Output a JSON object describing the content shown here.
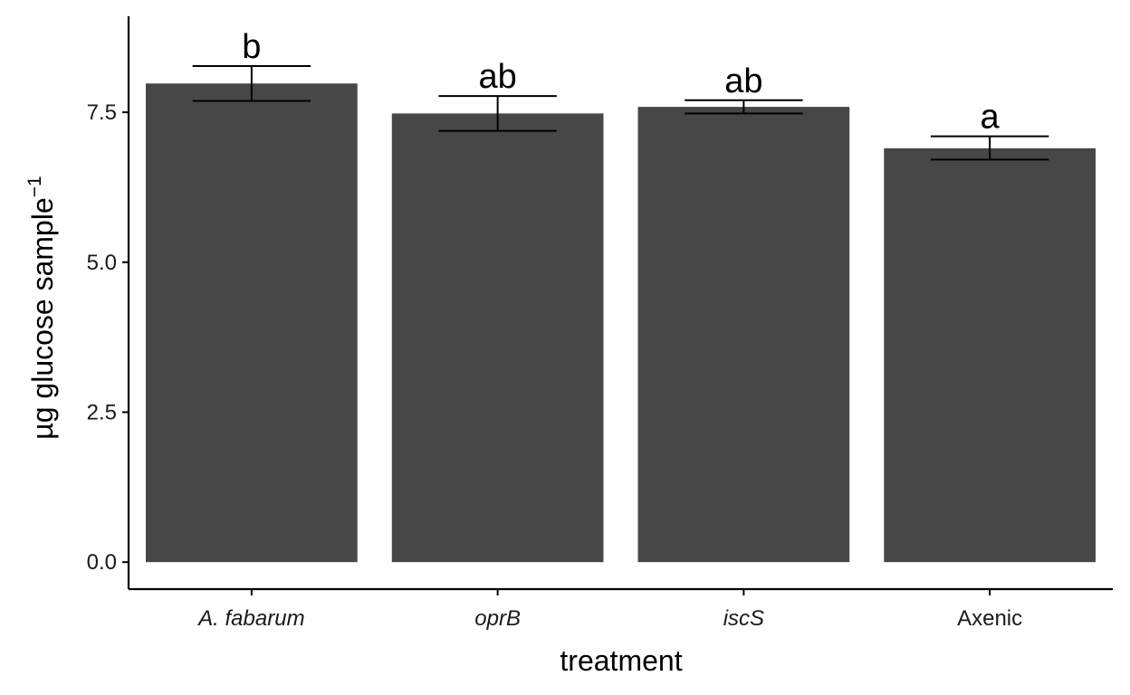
{
  "chart_data": {
    "type": "bar",
    "xlabel": "treatment",
    "ylabel": "µg glucose sample",
    "ylabel_superscript": "−1",
    "categories": [
      {
        "label": "A. fabarum",
        "italic": true
      },
      {
        "label": "oprB",
        "italic": true
      },
      {
        "label": "iscS",
        "italic": true
      },
      {
        "label": "Axenic",
        "italic": false
      }
    ],
    "values": [
      7.98,
      7.48,
      7.59,
      6.9
    ],
    "error_low": [
      7.69,
      7.19,
      7.48,
      6.71
    ],
    "error_high": [
      8.27,
      7.77,
      7.7,
      7.1
    ],
    "significance": [
      "b",
      "ab",
      "ab",
      "a"
    ],
    "ylim": [
      -0.45,
      9.1
    ],
    "yticks": [
      0.0,
      2.5,
      5.0,
      7.5
    ],
    "ytick_labels": [
      "0.0",
      "2.5",
      "5.0",
      "7.5"
    ],
    "grid": false,
    "legend": "none",
    "colors": {
      "bar": "#474747",
      "axis": "#000000",
      "errorbar": "#000000"
    }
  }
}
